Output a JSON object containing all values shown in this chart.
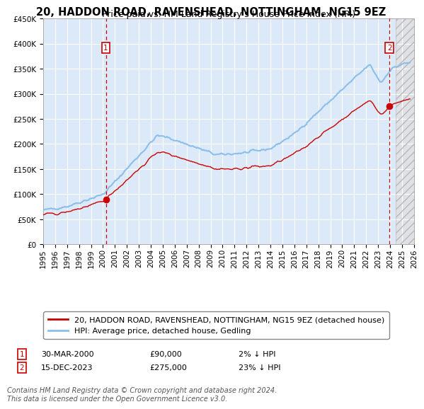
{
  "title": "20, HADDON ROAD, RAVENSHEAD, NOTTINGHAM, NG15 9EZ",
  "subtitle": "Price paid vs. HM Land Registry's House Price Index (HPI)",
  "hpi_label": "HPI: Average price, detached house, Gedling",
  "property_label": "20, HADDON ROAD, RAVENSHEAD, NOTTINGHAM, NG15 9EZ (detached house)",
  "sale1_date": "30-MAR-2000",
  "sale1_price": 90000,
  "sale1_hpi_diff": "2% ↓ HPI",
  "sale2_date": "15-DEC-2023",
  "sale2_price": 275000,
  "sale2_hpi_diff": "23% ↓ HPI",
  "sale1_year": 2000.24,
  "sale2_year": 2023.96,
  "ylim_min": 0,
  "ylim_max": 450000,
  "xlim_min": 1995,
  "xlim_max": 2026,
  "background_color": "#dce9f8",
  "grid_color": "#ffffff",
  "hpi_line_color": "#8bbfea",
  "property_line_color": "#cc0000",
  "vline_color": "#cc0000",
  "dot_color": "#cc0000",
  "future_start": 2024.5,
  "footer_text": "Contains HM Land Registry data © Crown copyright and database right 2024.\nThis data is licensed under the Open Government Licence v3.0.",
  "title_fontsize": 10.5,
  "subtitle_fontsize": 9,
  "tick_fontsize": 7.5,
  "legend_fontsize": 8,
  "footer_fontsize": 7
}
